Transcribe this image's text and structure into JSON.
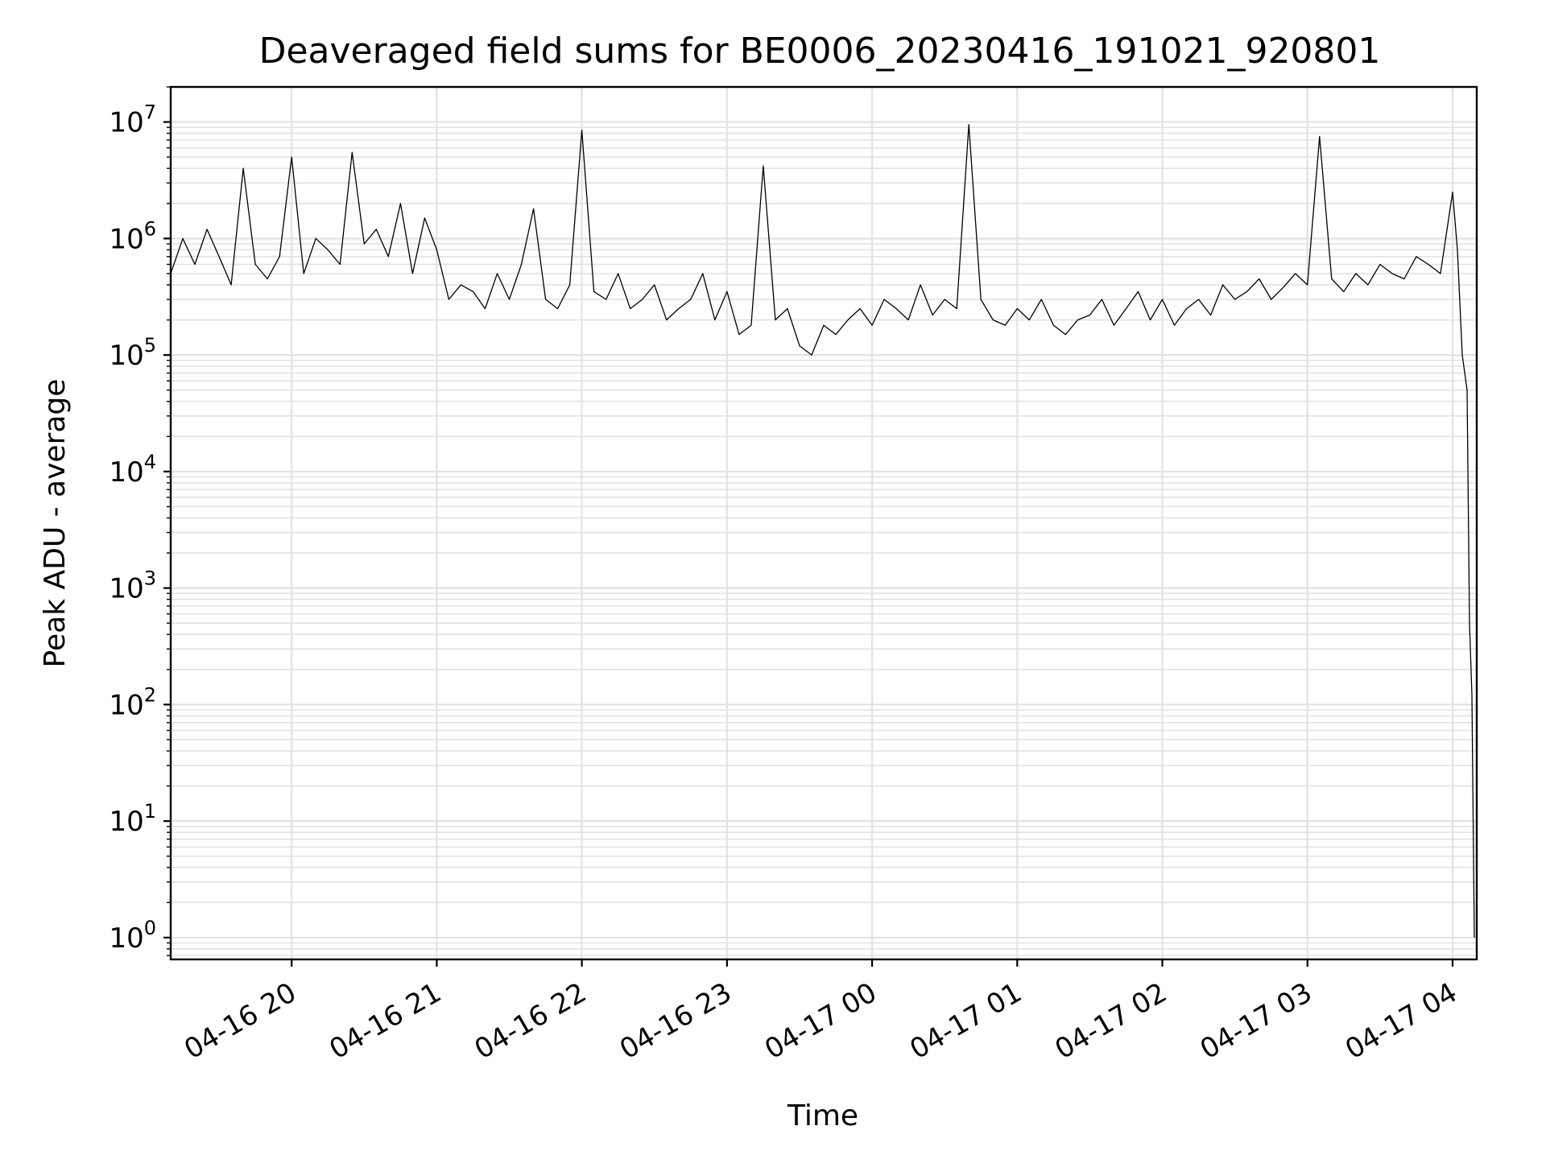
{
  "chart_data": {
    "type": "line",
    "title": "Deaveraged field sums for BE0006_20230416_191021_920801",
    "xlabel": "Time",
    "ylabel": "Peak ADU - average",
    "yscale": "log",
    "ylim": [
      0.65,
      20000000
    ],
    "xlim": [
      "2023-04-16 19:10",
      "2023-04-17 04:10"
    ],
    "grid": "on (major and minor, light gray)",
    "x_tick_labels": [
      "04-16 20",
      "04-16 21",
      "04-16 22",
      "04-16 23",
      "04-17 00",
      "04-17 01",
      "04-17 02",
      "04-17 03",
      "04-17 04"
    ],
    "y_tick_labels": [
      {
        "base": "10",
        "exp": "0"
      },
      {
        "base": "10",
        "exp": "1"
      },
      {
        "base": "10",
        "exp": "2"
      },
      {
        "base": "10",
        "exp": "3"
      },
      {
        "base": "10",
        "exp": "4"
      },
      {
        "base": "10",
        "exp": "5"
      },
      {
        "base": "10",
        "exp": "6"
      },
      {
        "base": "10",
        "exp": "7"
      }
    ],
    "series": [
      {
        "color": "#000000",
        "x": [
          "04-16 19:10",
          "04-16 19:15",
          "04-16 19:20",
          "04-16 19:25",
          "04-16 19:30",
          "04-16 19:35",
          "04-16 19:40",
          "04-16 19:45",
          "04-16 19:50",
          "04-16 19:55",
          "04-16 20:00",
          "04-16 20:05",
          "04-16 20:10",
          "04-16 20:15",
          "04-16 20:20",
          "04-16 20:25",
          "04-16 20:30",
          "04-16 20:35",
          "04-16 20:40",
          "04-16 20:45",
          "04-16 20:50",
          "04-16 20:55",
          "04-16 21:00",
          "04-16 21:05",
          "04-16 21:10",
          "04-16 21:15",
          "04-16 21:20",
          "04-16 21:25",
          "04-16 21:30",
          "04-16 21:35",
          "04-16 21:40",
          "04-16 21:45",
          "04-16 21:50",
          "04-16 21:55",
          "04-16 22:00",
          "04-16 22:05",
          "04-16 22:10",
          "04-16 22:15",
          "04-16 22:20",
          "04-16 22:25",
          "04-16 22:30",
          "04-16 22:35",
          "04-16 22:40",
          "04-16 22:45",
          "04-16 22:50",
          "04-16 22:55",
          "04-16 23:00",
          "04-16 23:05",
          "04-16 23:10",
          "04-16 23:15",
          "04-16 23:20",
          "04-16 23:25",
          "04-16 23:30",
          "04-16 23:35",
          "04-16 23:40",
          "04-16 23:45",
          "04-16 23:50",
          "04-16 23:55",
          "04-17 00:00",
          "04-17 00:05",
          "04-17 00:10",
          "04-17 00:15",
          "04-17 00:20",
          "04-17 00:25",
          "04-17 00:30",
          "04-17 00:35",
          "04-17 00:40",
          "04-17 00:45",
          "04-17 00:50",
          "04-17 00:55",
          "04-17 01:00",
          "04-17 01:05",
          "04-17 01:10",
          "04-17 01:15",
          "04-17 01:20",
          "04-17 01:25",
          "04-17 01:30",
          "04-17 01:35",
          "04-17 01:40",
          "04-17 01:45",
          "04-17 01:50",
          "04-17 01:55",
          "04-17 02:00",
          "04-17 02:05",
          "04-17 02:10",
          "04-17 02:15",
          "04-17 02:20",
          "04-17 02:25",
          "04-17 02:30",
          "04-17 02:35",
          "04-17 02:40",
          "04-17 02:45",
          "04-17 02:50",
          "04-17 02:55",
          "04-17 03:00",
          "04-17 03:05",
          "04-17 03:10",
          "04-17 03:15",
          "04-17 03:20",
          "04-17 03:25",
          "04-17 03:30",
          "04-17 03:35",
          "04-17 03:40",
          "04-17 03:45",
          "04-17 03:50",
          "04-17 03:55",
          "04-17 04:00",
          "04-17 04:02",
          "04-17 04:04",
          "04-17 04:06",
          "04-17 04:07",
          "04-17 04:08",
          "04-17 04:09"
        ],
        "y": [
          500000,
          1000000,
          600000,
          1200000,
          700000,
          400000,
          4000000,
          600000,
          450000,
          700000,
          5000000,
          500000,
          1000000,
          800000,
          600000,
          5500000,
          900000,
          1200000,
          700000,
          2000000,
          500000,
          1500000,
          800000,
          300000,
          400000,
          350000,
          250000,
          500000,
          300000,
          600000,
          1800000,
          300000,
          250000,
          400000,
          8500000,
          350000,
          300000,
          500000,
          250000,
          300000,
          400000,
          200000,
          250000,
          300000,
          500000,
          200000,
          350000,
          150000,
          180000,
          4200000,
          200000,
          250000,
          120000,
          100000,
          180000,
          150000,
          200000,
          250000,
          180000,
          300000,
          250000,
          200000,
          400000,
          220000,
          300000,
          250000,
          9500000,
          300000,
          200000,
          180000,
          250000,
          200000,
          300000,
          180000,
          150000,
          200000,
          220000,
          300000,
          180000,
          250000,
          350000,
          200000,
          300000,
          180000,
          250000,
          300000,
          220000,
          400000,
          300000,
          350000,
          450000,
          300000,
          380000,
          500000,
          400000,
          7500000,
          450000,
          350000,
          500000,
          400000,
          600000,
          500000,
          450000,
          700000,
          600000,
          500000,
          2500000,
          800000,
          100000,
          50000,
          500,
          120,
          1
        ]
      }
    ]
  }
}
